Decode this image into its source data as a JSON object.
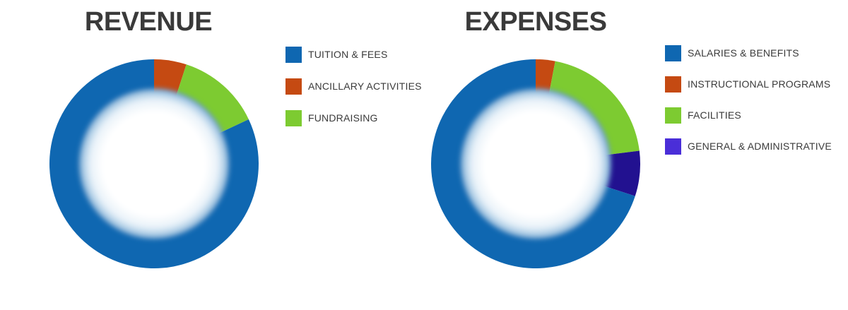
{
  "page": {
    "background": "#ffffff"
  },
  "style": {
    "title_color": "#3a3a3a",
    "legend_text_color": "#3a3a3a",
    "hole_glow_color": "#4e8bc2"
  },
  "chart_data": [
    {
      "type": "pie",
      "variant": "donut",
      "title": "REVENUE",
      "legend_position": "right",
      "unit": "percent",
      "labels": [
        "TUITION & FEES",
        "ANCILLARY ACTIVITIES",
        "FUNDRAISING"
      ],
      "values": [
        82,
        5,
        13
      ],
      "colors": [
        "#0f67b1",
        "#c54a12",
        "#7dcb31"
      ],
      "legend_swatch_colors": [
        "#0f67b1",
        "#c54a12",
        "#7dcb31"
      ],
      "slice_draw_order_clockwise_from_top": [
        1,
        2,
        0
      ],
      "data_labels_shown": false
    },
    {
      "type": "pie",
      "variant": "donut",
      "title": "EXPENSES",
      "legend_position": "right",
      "unit": "percent",
      "labels": [
        "SALARIES & BENEFITS",
        "INSTRUCTIONAL PROGRAMS",
        "FACILITIES",
        "GENERAL & ADMINISTRATIVE"
      ],
      "values": [
        70,
        3,
        20,
        7
      ],
      "colors": [
        "#0f67b1",
        "#c54a12",
        "#7dcb31",
        "#221190"
      ],
      "legend_swatch_colors": [
        "#0f67b1",
        "#c54a12",
        "#7dcb31",
        "#4a2ed8"
      ],
      "slice_draw_order_clockwise_from_top": [
        1,
        2,
        3,
        0
      ],
      "data_labels_shown": false
    }
  ]
}
